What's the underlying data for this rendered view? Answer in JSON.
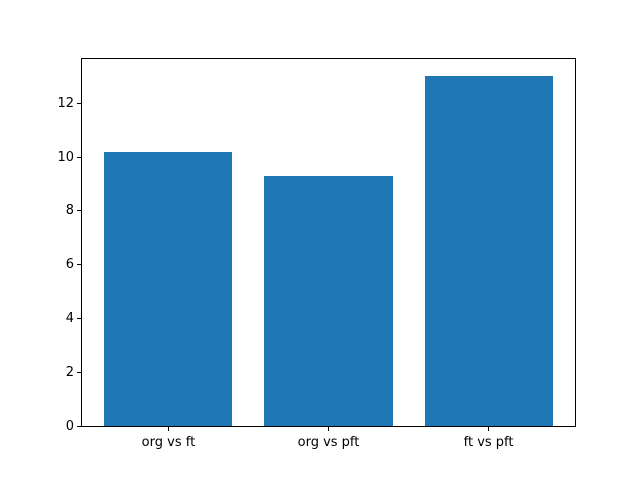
{
  "figure": {
    "background": "#ffffff",
    "spine_color": "#000000",
    "tick_color": "#000000"
  },
  "chart_data": {
    "type": "bar",
    "title": "",
    "xlabel": "",
    "ylabel": "",
    "categories": [
      "org vs ft",
      "org vs pft",
      "ft vs pft"
    ],
    "values": [
      10.2,
      9.3,
      13.0
    ],
    "bar_color": "#1f77b4",
    "bar_width": 0.8,
    "xlim": [
      -0.54,
      2.54
    ],
    "ylim": [
      0,
      13.65
    ],
    "yticks": [
      0,
      2,
      4,
      6,
      8,
      10,
      12
    ],
    "grid": false,
    "legend": false
  }
}
